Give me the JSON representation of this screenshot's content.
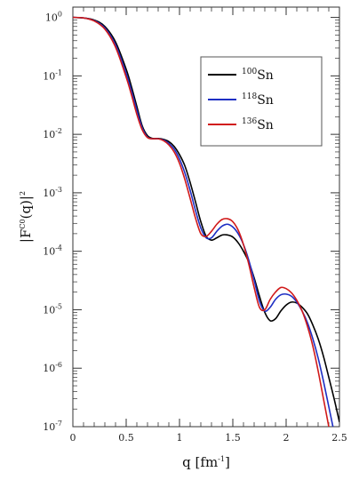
{
  "chart_data": {
    "type": "line",
    "title": "",
    "xlabel": "q [fm",
    "xlabel_sup": "-1",
    "xlabel_tail": "]",
    "ylabel_pre": "|F",
    "ylabel_sup": "C0",
    "ylabel_mid": "(q)|",
    "ylabel_sup2": "2",
    "xlim": [
      0,
      2.5
    ],
    "ylim": [
      1e-07,
      1.5
    ],
    "yscale": "log",
    "grid": false,
    "legend_position": "top-right",
    "x_ticks": [
      {
        "value": 0,
        "label": "0"
      },
      {
        "value": 0.5,
        "label": "0.5"
      },
      {
        "value": 1,
        "label": "1"
      },
      {
        "value": 1.5,
        "label": "1.5"
      },
      {
        "value": 2,
        "label": "2"
      },
      {
        "value": 2.5,
        "label": "2.5"
      }
    ],
    "y_ticks": [
      {
        "value": 1,
        "base": "10",
        "exp": "0"
      },
      {
        "value": 0.1,
        "base": "10",
        "exp": "-1"
      },
      {
        "value": 0.01,
        "base": "10",
        "exp": "-2"
      },
      {
        "value": 0.001,
        "base": "10",
        "exp": "-3"
      },
      {
        "value": 0.0001,
        "base": "10",
        "exp": "-4"
      },
      {
        "value": 1e-05,
        "base": "10",
        "exp": "-5"
      },
      {
        "value": 1e-06,
        "base": "10",
        "exp": "-6"
      },
      {
        "value": 1e-07,
        "base": "10",
        "exp": "-7"
      }
    ],
    "series": [
      {
        "name_sup": "100",
        "name": "Sn",
        "color": "#000000",
        "points": [
          [
            0,
            1
          ],
          [
            0.1,
            0.98
          ],
          [
            0.2,
            0.9
          ],
          [
            0.3,
            0.7
          ],
          [
            0.4,
            0.38
          ],
          [
            0.5,
            0.13
          ],
          [
            0.55,
            0.065
          ],
          [
            0.6,
            0.03
          ],
          [
            0.65,
            0.014
          ],
          [
            0.7,
            0.0095
          ],
          [
            0.75,
            0.0085
          ],
          [
            0.8,
            0.0085
          ],
          [
            0.85,
            0.0082
          ],
          [
            0.9,
            0.0075
          ],
          [
            0.95,
            0.0062
          ],
          [
            1.0,
            0.0045
          ],
          [
            1.05,
            0.0029
          ],
          [
            1.1,
            0.0015
          ],
          [
            1.15,
            0.0007
          ],
          [
            1.2,
            0.00032
          ],
          [
            1.25,
            0.00018
          ],
          [
            1.3,
            0.000155
          ],
          [
            1.35,
            0.00017
          ],
          [
            1.4,
            0.00019
          ],
          [
            1.45,
            0.00019
          ],
          [
            1.5,
            0.000175
          ],
          [
            1.55,
            0.00014
          ],
          [
            1.6,
            0.0001
          ],
          [
            1.65,
            6.5e-05
          ],
          [
            1.7,
            3.5e-05
          ],
          [
            1.75,
            1.7e-05
          ],
          [
            1.8,
            9e-06
          ],
          [
            1.85,
            6.5e-06
          ],
          [
            1.9,
            7e-06
          ],
          [
            1.95,
            9.5e-06
          ],
          [
            2.0,
            1.2e-05
          ],
          [
            2.05,
            1.35e-05
          ],
          [
            2.1,
            1.3e-05
          ],
          [
            2.15,
            1.1e-05
          ],
          [
            2.2,
            8.5e-06
          ],
          [
            2.25,
            5.5e-06
          ],
          [
            2.3,
            3.2e-06
          ],
          [
            2.35,
            1.6e-06
          ],
          [
            2.4,
            7e-07
          ],
          [
            2.45,
            3e-07
          ],
          [
            2.5,
            1.2e-07
          ]
        ]
      },
      {
        "name_sup": "118",
        "name": "Sn",
        "color": "#1e2fc4",
        "points": [
          [
            0,
            1
          ],
          [
            0.1,
            0.98
          ],
          [
            0.2,
            0.88
          ],
          [
            0.3,
            0.66
          ],
          [
            0.4,
            0.34
          ],
          [
            0.5,
            0.11
          ],
          [
            0.55,
            0.055
          ],
          [
            0.6,
            0.026
          ],
          [
            0.65,
            0.013
          ],
          [
            0.7,
            0.009
          ],
          [
            0.75,
            0.0084
          ],
          [
            0.8,
            0.0084
          ],
          [
            0.85,
            0.008
          ],
          [
            0.9,
            0.007
          ],
          [
            0.95,
            0.0056
          ],
          [
            1.0,
            0.0038
          ],
          [
            1.05,
            0.0022
          ],
          [
            1.1,
            0.0011
          ],
          [
            1.15,
            0.0005
          ],
          [
            1.2,
            0.00025
          ],
          [
            1.25,
            0.00017
          ],
          [
            1.3,
            0.00017
          ],
          [
            1.35,
            0.00022
          ],
          [
            1.4,
            0.00027
          ],
          [
            1.45,
            0.00029
          ],
          [
            1.5,
            0.00026
          ],
          [
            1.55,
            0.0002
          ],
          [
            1.6,
            0.00013
          ],
          [
            1.65,
            7e-05
          ],
          [
            1.7,
            3.2e-05
          ],
          [
            1.75,
            1.4e-05
          ],
          [
            1.8,
            9.5e-06
          ],
          [
            1.85,
            1.1e-05
          ],
          [
            1.9,
            1.5e-05
          ],
          [
            1.95,
            1.8e-05
          ],
          [
            2.0,
            1.85e-05
          ],
          [
            2.05,
            1.7e-05
          ],
          [
            2.1,
            1.35e-05
          ],
          [
            2.15,
            9.5e-06
          ],
          [
            2.2,
            6e-06
          ],
          [
            2.25,
            3.2e-06
          ],
          [
            2.3,
            1.5e-06
          ],
          [
            2.35,
            6e-07
          ],
          [
            2.4,
            2.2e-07
          ],
          [
            2.45,
            8e-08
          ]
        ]
      },
      {
        "name_sup": "136",
        "name": "Sn",
        "color": "#d11a1a",
        "points": [
          [
            0,
            1
          ],
          [
            0.1,
            0.98
          ],
          [
            0.2,
            0.87
          ],
          [
            0.3,
            0.63
          ],
          [
            0.4,
            0.31
          ],
          [
            0.5,
            0.095
          ],
          [
            0.55,
            0.047
          ],
          [
            0.6,
            0.022
          ],
          [
            0.65,
            0.012
          ],
          [
            0.7,
            0.0088
          ],
          [
            0.75,
            0.0084
          ],
          [
            0.8,
            0.0084
          ],
          [
            0.85,
            0.0078
          ],
          [
            0.9,
            0.0066
          ],
          [
            0.95,
            0.005
          ],
          [
            1.0,
            0.0032
          ],
          [
            1.05,
            0.0017
          ],
          [
            1.1,
            0.0008
          ],
          [
            1.15,
            0.00037
          ],
          [
            1.2,
            0.0002
          ],
          [
            1.25,
            0.00018
          ],
          [
            1.3,
            0.00022
          ],
          [
            1.35,
            0.00029
          ],
          [
            1.4,
            0.00035
          ],
          [
            1.45,
            0.00036
          ],
          [
            1.5,
            0.00032
          ],
          [
            1.55,
            0.00023
          ],
          [
            1.6,
            0.00013
          ],
          [
            1.65,
            6e-05
          ],
          [
            1.7,
            2.4e-05
          ],
          [
            1.75,
            1.1e-05
          ],
          [
            1.8,
            1e-05
          ],
          [
            1.85,
            1.5e-05
          ],
          [
            1.9,
            2e-05
          ],
          [
            1.95,
            2.4e-05
          ],
          [
            2.0,
            2.3e-05
          ],
          [
            2.05,
            1.95e-05
          ],
          [
            2.1,
            1.45e-05
          ],
          [
            2.15,
            9.5e-06
          ],
          [
            2.2,
            5.2e-06
          ],
          [
            2.25,
            2.4e-06
          ],
          [
            2.3,
            9e-07
          ],
          [
            2.35,
            3e-07
          ],
          [
            2.4,
            1e-07
          ]
        ]
      }
    ]
  }
}
